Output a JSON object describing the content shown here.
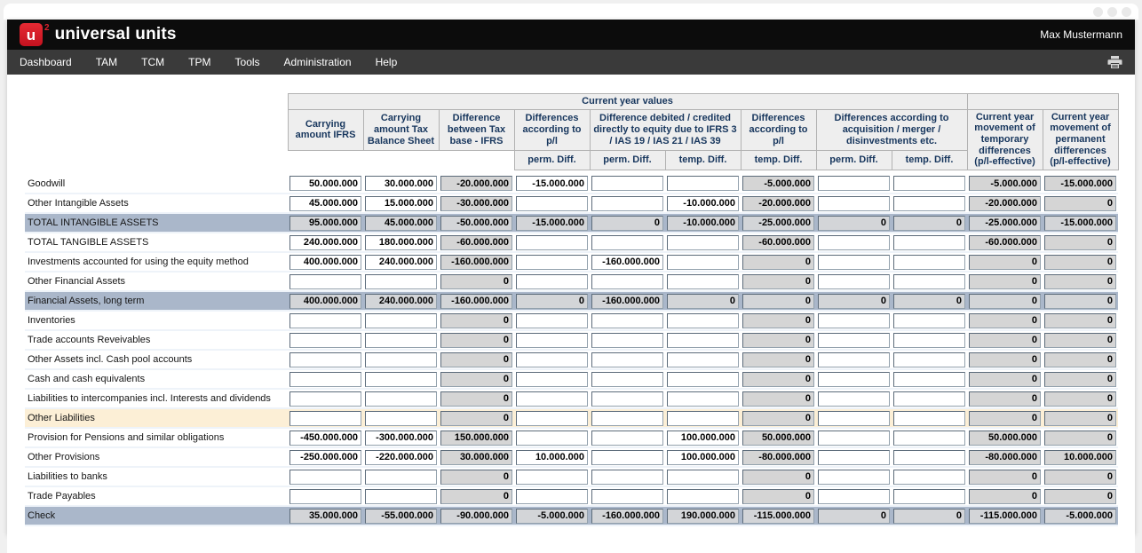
{
  "window": {
    "user": "Max Mustermann"
  },
  "brand": {
    "logo_letter": "u",
    "logo_sup": "2",
    "name": "universal units"
  },
  "nav": {
    "items": [
      "Dashboard",
      "TAM",
      "TCM",
      "TPM",
      "Tools",
      "Administration",
      "Help"
    ]
  },
  "icons": {
    "nav_right": "printer-icon",
    "window_controls": "window-dots-icon"
  },
  "colors": {
    "brand_red": "#e01f2d",
    "topbar_black": "#0c0c0c",
    "navbar_gray": "#3a3a3a",
    "header_text_navy": "#17365d",
    "header_cell_gray": "#eeeeee",
    "readonly_field_gray": "#d5d5d5",
    "total_row_blue": "#aab7ca",
    "attention_row_cream": "#fcefd6"
  },
  "table": {
    "group_header": {
      "label": "Current year values",
      "colspan": 9,
      "right_blank_colspan": 2
    },
    "main_headers": [
      {
        "label": "Carrying amount IFRS",
        "colspan": 1
      },
      {
        "label": "Carrying amount Tax Balance Sheet",
        "colspan": 1
      },
      {
        "label": "Difference between Tax base - IFRS",
        "colspan": 1
      },
      {
        "label": "Differences according to p/l",
        "colspan": 1
      },
      {
        "label": "Difference debited / credited directly to equity due to IFRS 3 / IAS 19 / IAS 21 / IAS 39",
        "colspan": 2
      },
      {
        "label": "Differences according to p/l",
        "colspan": 1
      },
      {
        "label": "Differences according to acquisition / merger / disinvestments etc.",
        "colspan": 2
      },
      {
        "label": "Current year movement of temporary differences (p/l-effective)",
        "colspan": 1,
        "tall": true
      },
      {
        "label": "Current year movement of permanent differences (p/l-effective)",
        "colspan": 1,
        "tall": true
      }
    ],
    "sub_headers": [
      "",
      "",
      "",
      "perm. Diff.",
      "perm. Diff.",
      "temp. Diff.",
      "temp. Diff.",
      "perm. Diff.",
      "temp. Diff."
    ],
    "readonly_value_columns": [
      2,
      6,
      9,
      10
    ],
    "rows": [
      {
        "label": "Goodwill",
        "style": "normal",
        "values": [
          "50.000.000",
          "30.000.000",
          "-20.000.000",
          "-15.000.000",
          "",
          "",
          "-5.000.000",
          "",
          "",
          "-5.000.000",
          "-15.000.000"
        ]
      },
      {
        "label": "Other Intangible Assets",
        "style": "normal",
        "values": [
          "45.000.000",
          "15.000.000",
          "-30.000.000",
          "",
          "",
          "-10.000.000",
          "-20.000.000",
          "",
          "",
          "-20.000.000",
          "0"
        ]
      },
      {
        "label": "TOTAL INTANGIBLE ASSETS",
        "style": "total",
        "all_readonly": true,
        "values": [
          "95.000.000",
          "45.000.000",
          "-50.000.000",
          "-15.000.000",
          "0",
          "-10.000.000",
          "-25.000.000",
          "0",
          "0",
          "-25.000.000",
          "-15.000.000"
        ]
      },
      {
        "label": "TOTAL TANGIBLE ASSETS",
        "style": "normal",
        "values": [
          "240.000.000",
          "180.000.000",
          "-60.000.000",
          "",
          "",
          "",
          "-60.000.000",
          "",
          "",
          "-60.000.000",
          "0"
        ]
      },
      {
        "label": "Investments accounted for using the equity method",
        "style": "normal",
        "values": [
          "400.000.000",
          "240.000.000",
          "-160.000.000",
          "",
          "-160.000.000",
          "",
          "0",
          "",
          "",
          "0",
          "0"
        ]
      },
      {
        "label": "Other Financial Assets",
        "style": "normal",
        "values": [
          "",
          "",
          "0",
          "",
          "",
          "",
          "0",
          "",
          "",
          "0",
          "0"
        ]
      },
      {
        "label": "Financial Assets, long term",
        "style": "total",
        "all_readonly": true,
        "values": [
          "400.000.000",
          "240.000.000",
          "-160.000.000",
          "0",
          "-160.000.000",
          "0",
          "0",
          "0",
          "0",
          "0",
          "0"
        ]
      },
      {
        "label": "Inventories",
        "style": "normal",
        "values": [
          "",
          "",
          "0",
          "",
          "",
          "",
          "0",
          "",
          "",
          "0",
          "0"
        ]
      },
      {
        "label": "Trade accounts Reveivables",
        "style": "normal",
        "values": [
          "",
          "",
          "0",
          "",
          "",
          "",
          "0",
          "",
          "",
          "0",
          "0"
        ]
      },
      {
        "label": "Other Assets incl. Cash pool accounts",
        "style": "normal",
        "values": [
          "",
          "",
          "0",
          "",
          "",
          "",
          "0",
          "",
          "",
          "0",
          "0"
        ]
      },
      {
        "label": "Cash and cash equivalents",
        "style": "normal",
        "values": [
          "",
          "",
          "0",
          "",
          "",
          "",
          "0",
          "",
          "",
          "0",
          "0"
        ]
      },
      {
        "label": "Liabilities to intercompanies incl. Interests and dividends",
        "style": "normal",
        "values": [
          "",
          "",
          "0",
          "",
          "",
          "",
          "0",
          "",
          "",
          "0",
          "0"
        ]
      },
      {
        "label": "Other Liabilities",
        "style": "attention",
        "values": [
          "",
          "",
          "0",
          "",
          "",
          "",
          "0",
          "",
          "",
          "0",
          "0"
        ]
      },
      {
        "label": "Provision for Pensions and similar obligations",
        "style": "normal",
        "values": [
          "-450.000.000",
          "-300.000.000",
          "150.000.000",
          "",
          "",
          "100.000.000",
          "50.000.000",
          "",
          "",
          "50.000.000",
          "0"
        ]
      },
      {
        "label": "Other Provisions",
        "style": "normal",
        "values": [
          "-250.000.000",
          "-220.000.000",
          "30.000.000",
          "10.000.000",
          "",
          "100.000.000",
          "-80.000.000",
          "",
          "",
          "-80.000.000",
          "10.000.000"
        ]
      },
      {
        "label": "Liabilities to banks",
        "style": "normal",
        "values": [
          "",
          "",
          "0",
          "",
          "",
          "",
          "0",
          "",
          "",
          "0",
          "0"
        ]
      },
      {
        "label": "Trade Payables",
        "style": "normal",
        "values": [
          "",
          "",
          "0",
          "",
          "",
          "",
          "0",
          "",
          "",
          "0",
          "0"
        ]
      },
      {
        "label": "Check",
        "style": "total",
        "all_readonly": true,
        "values": [
          "35.000.000",
          "-55.000.000",
          "-90.000.000",
          "-5.000.000",
          "-160.000.000",
          "190.000.000",
          "-115.000.000",
          "0",
          "0",
          "-115.000.000",
          "-5.000.000"
        ]
      }
    ]
  }
}
